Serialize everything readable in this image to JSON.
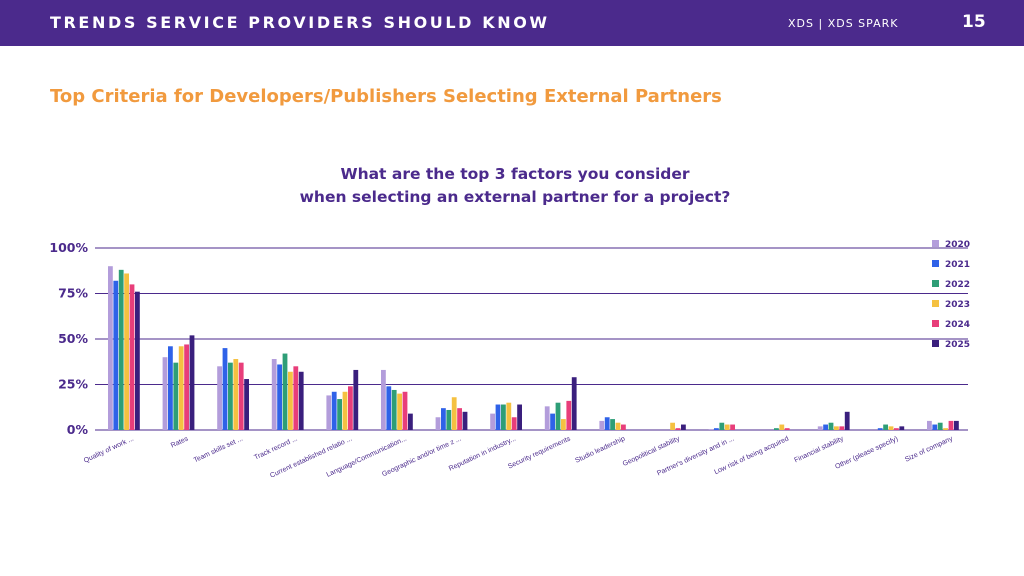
{
  "header": {
    "title": "TRENDS SERVICE PROVIDERS SHOULD KNOW",
    "brand": "XDS  |  XDS SPARK",
    "page_number": "15"
  },
  "slide_title": "Top Criteria for Developers/Publishers Selecting External Partners",
  "chart_data": {
    "type": "bar",
    "title_lines": [
      "What are the top 3 factors you consider",
      "when selecting an external partner for a project?"
    ],
    "xlabel": "",
    "ylabel": "",
    "ylim": [
      0,
      100
    ],
    "yticks": [
      0,
      25,
      50,
      75,
      100
    ],
    "ytick_labels": [
      "0%",
      "25%",
      "50%",
      "75%",
      "100%"
    ],
    "grid": true,
    "legend_position": "right",
    "categories": [
      "Quality of work ...",
      "Rates",
      "Team skills set ...",
      "Track record ...",
      "Current established relatio ...",
      "Language/Communication...",
      "Geographic and/or time z ...",
      "Reputation in industry...",
      "Security requirements",
      "Studio leadership",
      "Geopolitical stability",
      "Partner's diversity and in ...",
      "Low risk of being acquired",
      "Financial stability",
      "Other (please specify)",
      "Size of company"
    ],
    "series": [
      {
        "name": "2020",
        "color": "#b39ddb",
        "values": [
          90,
          40,
          35,
          39,
          19,
          33,
          7,
          9,
          13,
          5,
          0,
          0.5,
          0,
          2,
          0,
          5
        ]
      },
      {
        "name": "2021",
        "color": "#2f62e8",
        "values": [
          82,
          46,
          45,
          36,
          21,
          24,
          12,
          14,
          9,
          7,
          0,
          1,
          0,
          3,
          1,
          3
        ]
      },
      {
        "name": "2022",
        "color": "#2e9e77",
        "values": [
          88,
          37,
          37,
          42,
          17,
          22,
          11,
          14,
          15,
          6,
          0,
          4,
          1,
          4,
          3,
          4
        ]
      },
      {
        "name": "2023",
        "color": "#f5c141",
        "values": [
          86,
          46,
          39,
          32,
          21,
          20,
          18,
          15,
          6,
          4,
          4,
          3,
          3,
          2,
          2,
          1
        ]
      },
      {
        "name": "2024",
        "color": "#e83e7a",
        "values": [
          80,
          47,
          37,
          35,
          24,
          21,
          12,
          7,
          16,
          3,
          1,
          3,
          1,
          2,
          1,
          5
        ]
      },
      {
        "name": "2025",
        "color": "#3a1f7d",
        "values": [
          76,
          52,
          28,
          32,
          33,
          9,
          10,
          14,
          29,
          0,
          3,
          0,
          0,
          10,
          2,
          5
        ]
      }
    ]
  }
}
